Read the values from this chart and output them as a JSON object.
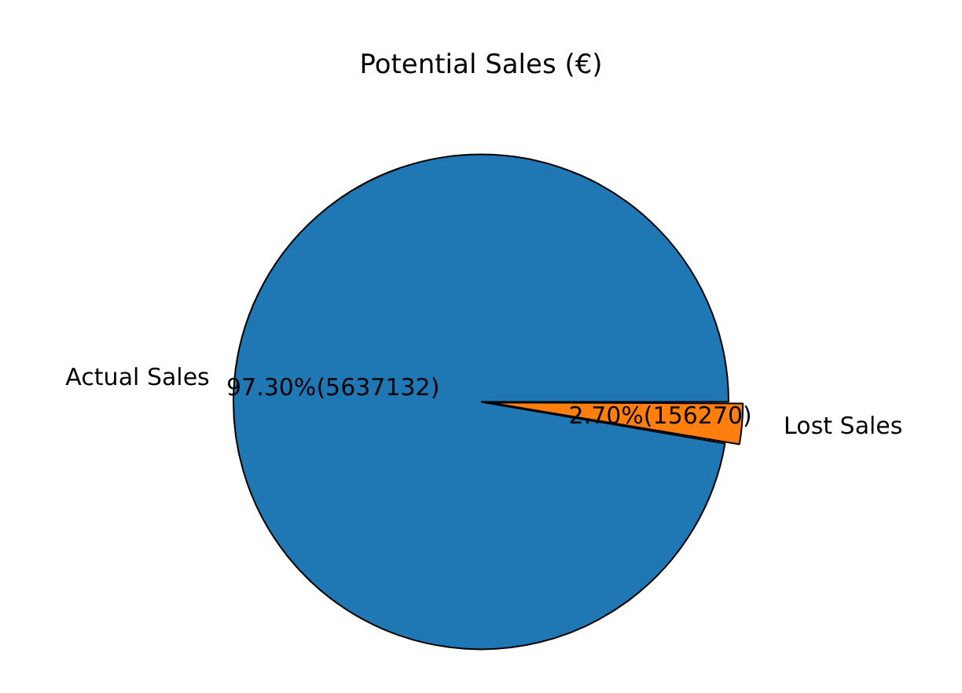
{
  "chart_data": {
    "type": "pie",
    "title": "Potential Sales (€)",
    "categories": [
      "Actual Sales",
      "Lost Sales"
    ],
    "values": [
      5637132,
      156270
    ],
    "colors": [
      "#1f77b4",
      "#ff7f0e"
    ],
    "value_labels": [
      "97.30%(5637132)",
      "2.70%(156270)"
    ],
    "legend": false
  }
}
